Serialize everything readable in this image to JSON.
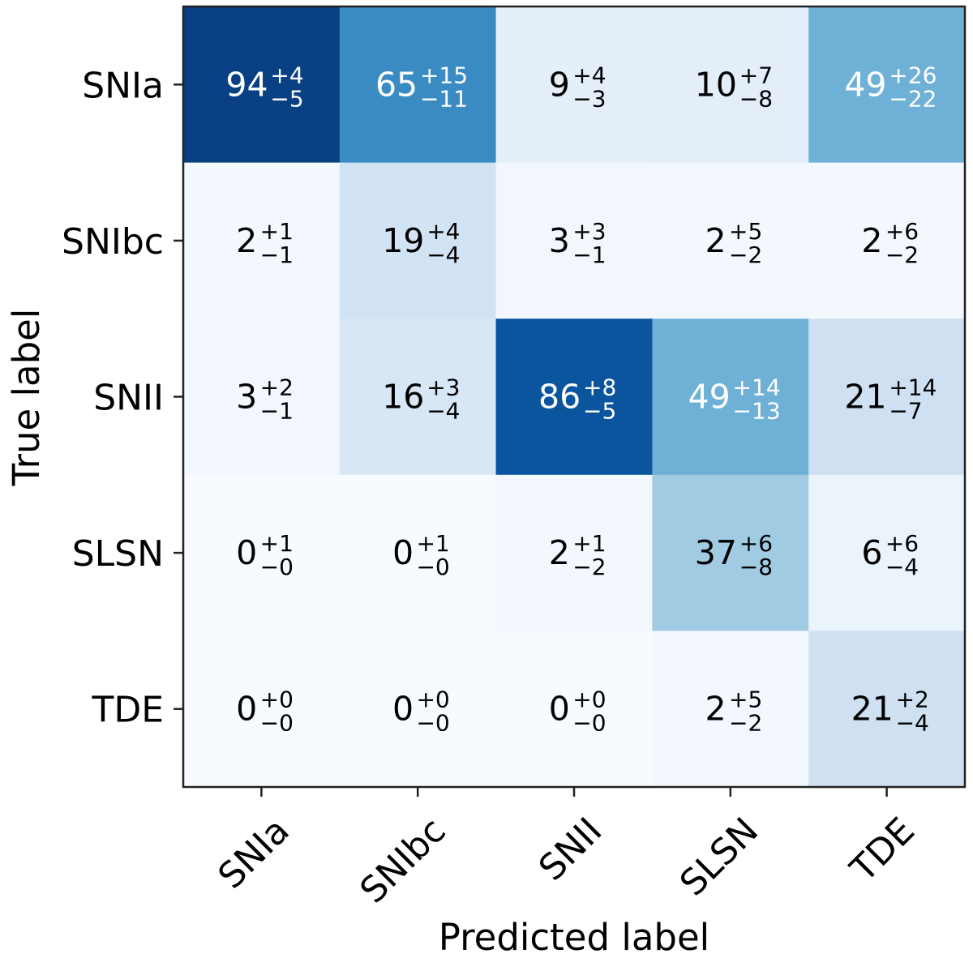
{
  "chart_data": {
    "type": "heatmap",
    "title": "",
    "xlabel": "Predicted label",
    "ylabel": "True label",
    "x_categories": [
      "SNIa",
      "SNIbc",
      "SNII",
      "SLSN",
      "TDE"
    ],
    "y_categories": [
      "SNIa",
      "SNIbc",
      "SNII",
      "SLSN",
      "TDE"
    ],
    "colormap": "Blues",
    "value_range": [
      0,
      100
    ],
    "cells": [
      [
        {
          "v": "94",
          "up": "+4",
          "lo": "−5"
        },
        {
          "v": "65",
          "up": "+15",
          "lo": "−11"
        },
        {
          "v": "9",
          "up": "+4",
          "lo": "−3"
        },
        {
          "v": "10",
          "up": "+7",
          "lo": "−8"
        },
        {
          "v": "49",
          "up": "+26",
          "lo": "−22"
        }
      ],
      [
        {
          "v": "2",
          "up": "+1",
          "lo": "−1"
        },
        {
          "v": "19",
          "up": "+4",
          "lo": "−4"
        },
        {
          "v": "3",
          "up": "+3",
          "lo": "−1"
        },
        {
          "v": "2",
          "up": "+5",
          "lo": "−2"
        },
        {
          "v": "2",
          "up": "+6",
          "lo": "−2"
        }
      ],
      [
        {
          "v": "3",
          "up": "+2",
          "lo": "−1"
        },
        {
          "v": "16",
          "up": "+3",
          "lo": "−4"
        },
        {
          "v": "86",
          "up": "+8",
          "lo": "−5"
        },
        {
          "v": "49",
          "up": "+14",
          "lo": "−13"
        },
        {
          "v": "21",
          "up": "+14",
          "lo": "−7"
        }
      ],
      [
        {
          "v": "0",
          "up": "+1",
          "lo": "−0"
        },
        {
          "v": "0",
          "up": "+1",
          "lo": "−0"
        },
        {
          "v": "2",
          "up": "+1",
          "lo": "−2"
        },
        {
          "v": "37",
          "up": "+6",
          "lo": "−8"
        },
        {
          "v": "6",
          "up": "+6",
          "lo": "−4"
        }
      ],
      [
        {
          "v": "0",
          "up": "+0",
          "lo": "−0"
        },
        {
          "v": "0",
          "up": "+0",
          "lo": "−0"
        },
        {
          "v": "0",
          "up": "+0",
          "lo": "−0"
        },
        {
          "v": "2",
          "up": "+5",
          "lo": "−2"
        },
        {
          "v": "21",
          "up": "+2",
          "lo": "−4"
        }
      ]
    ]
  }
}
